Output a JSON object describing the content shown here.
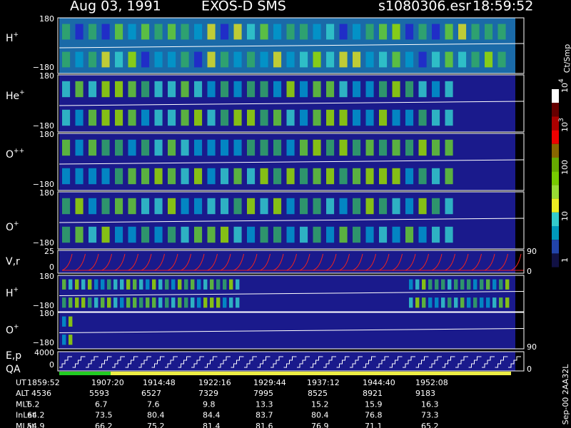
{
  "header": {
    "date": "Aug 03, 1991",
    "instrument": "EXOS-D SMS",
    "file": "s1080306.esr",
    "time": "18:59:52"
  },
  "panels": [
    {
      "label": "H",
      "sup": "+",
      "ticks": [
        "180",
        "−180"
      ]
    },
    {
      "label": "He",
      "sup": "+",
      "ticks": [
        "180",
        "−180"
      ]
    },
    {
      "label": "O",
      "sup": "++",
      "ticks": [
        "180",
        "−180"
      ]
    },
    {
      "label": "O",
      "sup": "+",
      "ticks": [
        "180",
        "−180"
      ]
    },
    {
      "label": "V,r",
      "ticks": [
        "25",
        "0"
      ],
      "right_ticks": [
        "90",
        "0"
      ]
    },
    {
      "label": "H",
      "sup": "+",
      "ticks": [
        "180",
        "−180"
      ]
    },
    {
      "label": "O",
      "sup": "+",
      "ticks": [
        "180",
        "−180"
      ],
      "right_ticks": [
        "90"
      ]
    },
    {
      "label": "E,p",
      "label2": "QA",
      "ticks": [
        "4000",
        "0"
      ],
      "right_ticks": [
        "0"
      ]
    }
  ],
  "colorbar": {
    "unit": "Ct/Smp",
    "ticks": [
      {
        "base": "10",
        "sup": "4"
      },
      {
        "base": "10",
        "sup": "3"
      },
      {
        "base": "100"
      },
      {
        "base": "10"
      },
      {
        "base": "1"
      }
    ]
  },
  "table": {
    "rows": [
      {
        "label": "UT",
        "values": [
          "1859:52",
          "1907:20",
          "1914:48",
          "1922:16",
          "1929:44",
          "1937:12",
          "1944:40",
          "1952:08"
        ]
      },
      {
        "label": "ALT",
        "values": [
          "4536",
          "5593",
          "6527",
          "7329",
          "7995",
          "8525",
          "8921",
          "9183"
        ]
      },
      {
        "label": "MLT",
        "values": [
          "6.2",
          "6.7",
          "7.6",
          "9.8",
          "13.3",
          "15.2",
          "15.9",
          "16.3"
        ]
      },
      {
        "label": "InLat",
        "values": [
          "64.2",
          "73.5",
          "80.4",
          "84.4",
          "83.7",
          "80.4",
          "76.8",
          "73.3"
        ]
      },
      {
        "label": "MLat",
        "values": [
          "54.9",
          "66.2",
          "75.2",
          "81.4",
          "81.6",
          "76.9",
          "71.1",
          "65.2"
        ]
      }
    ]
  },
  "footer_note": "Sep-00 2AA32L"
}
